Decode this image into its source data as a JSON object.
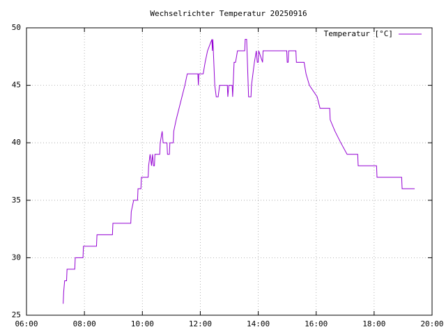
{
  "chart_data": {
    "type": "line",
    "title": "Wechselrichter Temperatur 20250916",
    "x": [
      "07:16",
      "07:17",
      "07:19",
      "07:23",
      "07:24",
      "07:40",
      "07:41",
      "07:57",
      "07:58",
      "08:25",
      "08:26",
      "08:58",
      "08:59",
      "09:36",
      "09:37",
      "09:42",
      "09:50",
      "09:51",
      "09:57",
      "09:58",
      "10:12",
      "10:13",
      "10:16",
      "10:19",
      "10:21",
      "10:23",
      "10:25",
      "10:26",
      "10:36",
      "10:37",
      "10:41",
      "10:43",
      "10:51",
      "10:52",
      "10:56",
      "10:57",
      "11:04",
      "11:05",
      "11:10",
      "11:16",
      "11:22",
      "11:28",
      "11:33",
      "11:55",
      "11:56",
      "11:57",
      "12:06",
      "12:10",
      "12:15",
      "12:24",
      "12:25",
      "12:26",
      "12:30",
      "12:33",
      "12:37",
      "12:40",
      "12:56",
      "12:57",
      "12:59",
      "13:06",
      "13:07",
      "13:08",
      "13:09",
      "13:10",
      "13:13",
      "13:17",
      "13:32",
      "13:33",
      "13:36",
      "13:40",
      "13:45",
      "13:46",
      "13:49",
      "13:52",
      "13:56",
      "13:58",
      "14:00",
      "14:01",
      "14:09",
      "14:10",
      "14:59",
      "15:00",
      "15:02",
      "15:03",
      "15:18",
      "15:19",
      "15:35",
      "15:39",
      "15:46",
      "16:02",
      "16:08",
      "16:28",
      "16:29",
      "16:39",
      "16:51",
      "17:04",
      "17:26",
      "17:27",
      "18:05",
      "18:06",
      "18:57",
      "18:58",
      "19:24"
    ],
    "series": [
      {
        "name": "Temperatur [°C]",
        "color": "#9400d3",
        "values": [
          26,
          27,
          28,
          28,
          29,
          29,
          30,
          30,
          31,
          31,
          32,
          32,
          33,
          33,
          34,
          35,
          35,
          36,
          36,
          37,
          37,
          38,
          39,
          38,
          39,
          38,
          38,
          39,
          39,
          40,
          41,
          40,
          40,
          39,
          39,
          40,
          40,
          41,
          42,
          43,
          44,
          45,
          46,
          46,
          45,
          46,
          46,
          47,
          48,
          49,
          48,
          49,
          45,
          44,
          44,
          45,
          45,
          44,
          45,
          45,
          44,
          45,
          46,
          47,
          47,
          48,
          48,
          49,
          49,
          44,
          44,
          45,
          46,
          47,
          48,
          47,
          47,
          48,
          47,
          48,
          48,
          47,
          47,
          48,
          48,
          47,
          47,
          46,
          45,
          44,
          43,
          43,
          42,
          41,
          40,
          39,
          39,
          38,
          38,
          37,
          37,
          36,
          36
        ]
      }
    ],
    "xlim": [
      "06:00",
      "20:00"
    ],
    "xticks": [
      "06:00",
      "08:00",
      "10:00",
      "12:00",
      "14:00",
      "16:00",
      "18:00",
      "20:00"
    ],
    "ylim": [
      25,
      50
    ],
    "yticks": [
      25,
      30,
      35,
      40,
      45,
      50
    ],
    "grid": true,
    "legend": "top-right"
  }
}
